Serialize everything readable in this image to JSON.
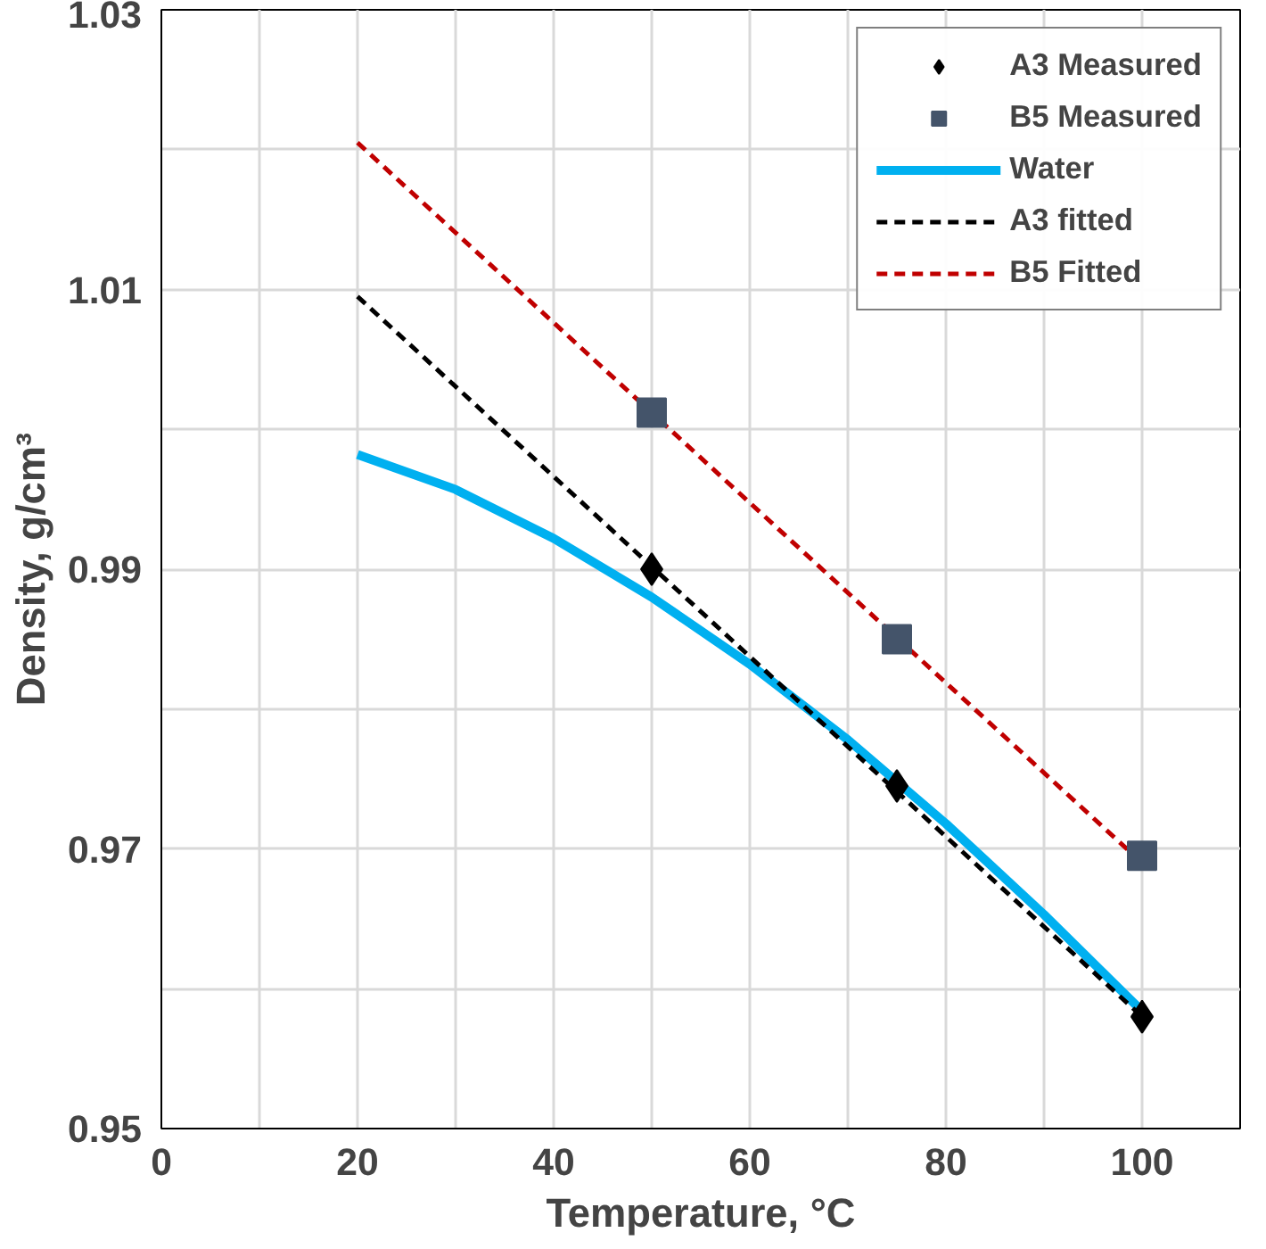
{
  "chart_data": {
    "type": "line",
    "xlabel": "Temperature, °C",
    "ylabel": "Density, g/cm³",
    "xlim": [
      0,
      110
    ],
    "ylim": [
      0.95,
      1.03
    ],
    "xticks": [
      0,
      {
        "value": 10,
        "label": null
      },
      20,
      {
        "value": 30,
        "label": null
      },
      40,
      {
        "value": 50,
        "label": null
      },
      60,
      {
        "value": 70,
        "label": null
      },
      80,
      {
        "value": 90,
        "label": null
      },
      100
    ],
    "yticks": [
      0.95,
      {
        "value": 0.96,
        "label": null
      },
      0.97,
      {
        "value": 0.98,
        "label": null
      },
      0.99,
      {
        "value": 1.0,
        "label": null
      },
      1.01,
      {
        "value": 1.02,
        "label": null
      },
      1.03
    ],
    "grid": true,
    "legend": "top right",
    "series": [
      {
        "name": "A3 Measured",
        "type": "scatter",
        "marker": "diamond",
        "color": "#000000",
        "x": [
          50,
          75,
          100
        ],
        "values": [
          0.99,
          0.9745,
          0.958
        ]
      },
      {
        "name": "B5 Measured",
        "type": "scatter",
        "marker": "square",
        "color": "#44546a",
        "x": [
          50,
          75,
          100
        ],
        "values": [
          1.0012,
          0.985,
          0.9695
        ]
      },
      {
        "name": "Water",
        "line_style": "solid",
        "color": "#00b0f0",
        "x": [
          20,
          30,
          40,
          50,
          60,
          70,
          80,
          90,
          100
        ],
        "values": [
          0.9982,
          0.9957,
          0.9922,
          0.988,
          0.9832,
          0.9778,
          0.9718,
          0.9653,
          0.9584
        ]
      },
      {
        "name": "A3 fitted",
        "line_style": "dashed",
        "color": "#000000",
        "x": [
          20,
          100
        ],
        "values": [
          1.0095,
          0.958
        ]
      },
      {
        "name": "B5 Fitted",
        "line_style": "dashed",
        "color": "#c00000",
        "x": [
          20,
          100
        ],
        "values": [
          1.0205,
          0.969
        ]
      }
    ]
  }
}
